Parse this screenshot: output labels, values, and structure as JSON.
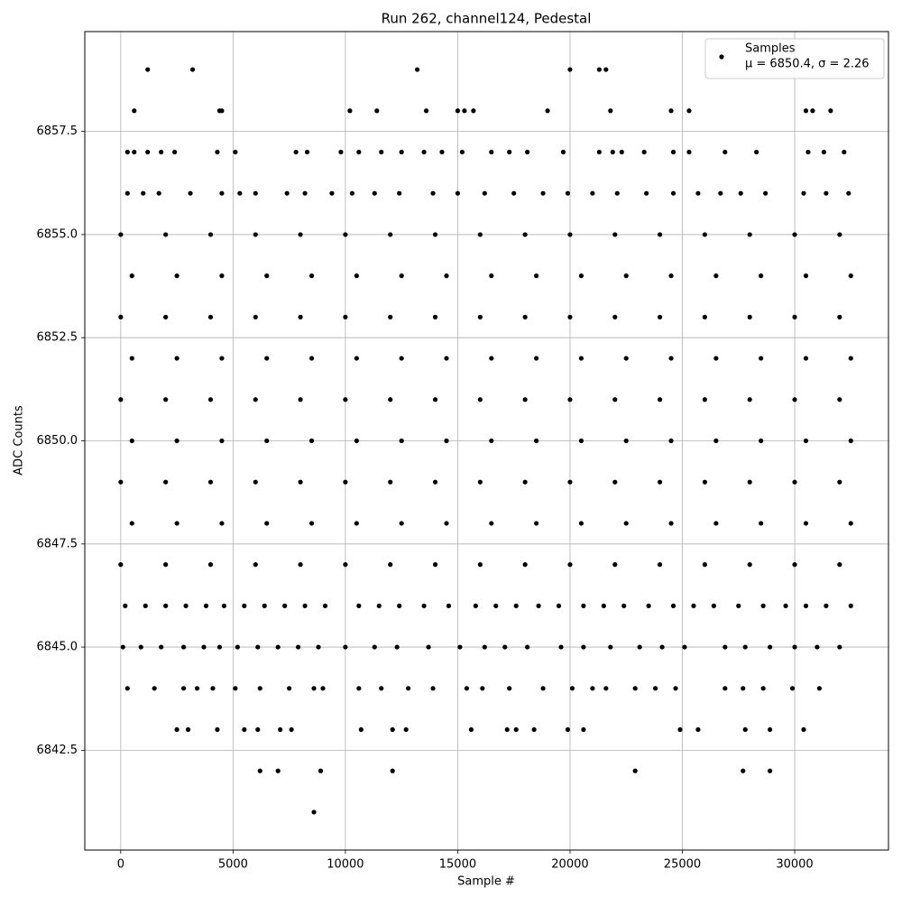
{
  "chart_data": {
    "type": "scatter",
    "title": "Run 262, channel124, Pedestal",
    "x_label": "Sample #",
    "y_label": "ADC Counts",
    "xlim": [
      -1600,
      34175
    ],
    "ylim": [
      6840.08,
      6859.92
    ],
    "xticks": [
      0,
      5000,
      10000,
      15000,
      20000,
      25000,
      30000
    ],
    "yticks": [
      6842.5,
      {
        "value": 6845,
        "label": "6845.0"
      },
      6847.5,
      {
        "value": 6850,
        "label": "6850.0"
      },
      6852.5,
      {
        "value": 6855,
        "label": "6855.0"
      },
      6857.5
    ],
    "grid": true,
    "legend": "upper right",
    "annotation": "μ = 6850.4, σ = 2.26",
    "series": [
      {
        "name": "Samples",
        "color": "#000000",
        "x": [
          1200,
          3200,
          13200,
          20000,
          21300,
          21600,
          600,
          4400,
          4500,
          10200,
          11400,
          13600,
          15000,
          15300,
          15700,
          19000,
          21800,
          24500,
          25300,
          30500,
          30800,
          31600,
          300,
          600,
          1200,
          1800,
          2400,
          4300,
          5100,
          7800,
          8300,
          9800,
          10600,
          11600,
          12500,
          13500,
          14300,
          15200,
          16500,
          17300,
          18100,
          19700,
          21300,
          21900,
          22300,
          23300,
          24600,
          25300,
          26900,
          28300,
          30600,
          31300,
          32200,
          300,
          1000,
          1700,
          3100,
          4500,
          5300,
          6000,
          7400,
          8200,
          9400,
          10300,
          11300,
          12400,
          13900,
          15000,
          16200,
          17500,
          18800,
          19900,
          21000,
          22100,
          23400,
          24600,
          25700,
          26700,
          27600,
          28700,
          30400,
          31400,
          32400,
          0,
          2000,
          4000,
          6000,
          8000,
          10000,
          12000,
          14000,
          16000,
          18000,
          20000,
          22000,
          24000,
          26000,
          28000,
          30000,
          32000,
          500,
          2500,
          4500,
          6500,
          8500,
          10500,
          12500,
          14500,
          16500,
          18500,
          20500,
          22500,
          24500,
          26500,
          28500,
          30500,
          32500,
          0,
          2000,
          4000,
          6000,
          8000,
          10000,
          12000,
          14000,
          16000,
          18000,
          20000,
          22000,
          24000,
          26000,
          28000,
          30000,
          32000,
          500,
          2500,
          4500,
          6500,
          8500,
          10500,
          12500,
          14500,
          16500,
          18500,
          20500,
          22500,
          24500,
          26500,
          28500,
          30500,
          32500,
          0,
          2000,
          4000,
          6000,
          8000,
          10000,
          12000,
          14000,
          16000,
          18000,
          20000,
          22000,
          24000,
          26000,
          28000,
          30000,
          32000,
          500,
          2500,
          4500,
          6500,
          8500,
          10500,
          12500,
          14500,
          16500,
          18500,
          20500,
          22500,
          24500,
          26500,
          28500,
          30500,
          32500,
          0,
          2000,
          4000,
          6000,
          8000,
          10000,
          12000,
          14000,
          16000,
          18000,
          20000,
          22000,
          24000,
          26000,
          28000,
          30000,
          32000,
          500,
          2500,
          4500,
          6500,
          8500,
          10500,
          12500,
          14500,
          16500,
          18500,
          20500,
          22500,
          24500,
          26500,
          28500,
          30500,
          32500,
          0,
          2000,
          4000,
          6000,
          8000,
          10000,
          12000,
          14000,
          16000,
          18000,
          20000,
          22000,
          24000,
          26000,
          28000,
          30000,
          32000,
          200,
          1100,
          2000,
          2900,
          3800,
          4600,
          5500,
          6400,
          7300,
          8200,
          9100,
          10600,
          11500,
          12400,
          13500,
          14600,
          15800,
          16700,
          17600,
          18600,
          19500,
          20600,
          21500,
          22400,
          23500,
          24600,
          25500,
          26400,
          27500,
          28600,
          29600,
          30500,
          31400,
          32500,
          100,
          900,
          1800,
          2800,
          3700,
          4400,
          5200,
          6100,
          7000,
          7900,
          8800,
          10000,
          11300,
          12300,
          13700,
          15100,
          16200,
          17100,
          18100,
          19600,
          20600,
          21800,
          23100,
          24100,
          25100,
          26900,
          27800,
          28900,
          30000,
          31000,
          32000,
          300,
          1500,
          2800,
          3400,
          4100,
          5100,
          6200,
          7500,
          8600,
          9000,
          10600,
          11600,
          12800,
          13900,
          15400,
          16100,
          17300,
          18800,
          20100,
          21000,
          21600,
          22900,
          23800,
          24700,
          26900,
          27700,
          28600,
          29900,
          31100,
          2500,
          3000,
          4300,
          5500,
          6100,
          7100,
          7600,
          10700,
          12100,
          12700,
          15600,
          17200,
          17600,
          18400,
          19900,
          20600,
          24900,
          25700,
          27800,
          28900,
          30400,
          6200,
          7000,
          8900,
          12100,
          22900,
          27700,
          28900,
          8600
        ],
        "values": [
          6859,
          6859,
          6859,
          6859,
          6859,
          6859,
          6858,
          6858,
          6858,
          6858,
          6858,
          6858,
          6858,
          6858,
          6858,
          6858,
          6858,
          6858,
          6858,
          6858,
          6858,
          6858,
          6857,
          6857,
          6857,
          6857,
          6857,
          6857,
          6857,
          6857,
          6857,
          6857,
          6857,
          6857,
          6857,
          6857,
          6857,
          6857,
          6857,
          6857,
          6857,
          6857,
          6857,
          6857,
          6857,
          6857,
          6857,
          6857,
          6857,
          6857,
          6857,
          6857,
          6857,
          6856,
          6856,
          6856,
          6856,
          6856,
          6856,
          6856,
          6856,
          6856,
          6856,
          6856,
          6856,
          6856,
          6856,
          6856,
          6856,
          6856,
          6856,
          6856,
          6856,
          6856,
          6856,
          6856,
          6856,
          6856,
          6856,
          6856,
          6856,
          6856,
          6856,
          6855,
          6855,
          6855,
          6855,
          6855,
          6855,
          6855,
          6855,
          6855,
          6855,
          6855,
          6855,
          6855,
          6855,
          6855,
          6855,
          6855,
          6854,
          6854,
          6854,
          6854,
          6854,
          6854,
          6854,
          6854,
          6854,
          6854,
          6854,
          6854,
          6854,
          6854,
          6854,
          6854,
          6854,
          6853,
          6853,
          6853,
          6853,
          6853,
          6853,
          6853,
          6853,
          6853,
          6853,
          6853,
          6853,
          6853,
          6853,
          6853,
          6853,
          6853,
          6852,
          6852,
          6852,
          6852,
          6852,
          6852,
          6852,
          6852,
          6852,
          6852,
          6852,
          6852,
          6852,
          6852,
          6852,
          6852,
          6852,
          6851,
          6851,
          6851,
          6851,
          6851,
          6851,
          6851,
          6851,
          6851,
          6851,
          6851,
          6851,
          6851,
          6851,
          6851,
          6851,
          6851,
          6850,
          6850,
          6850,
          6850,
          6850,
          6850,
          6850,
          6850,
          6850,
          6850,
          6850,
          6850,
          6850,
          6850,
          6850,
          6850,
          6850,
          6849,
          6849,
          6849,
          6849,
          6849,
          6849,
          6849,
          6849,
          6849,
          6849,
          6849,
          6849,
          6849,
          6849,
          6849,
          6849,
          6849,
          6848,
          6848,
          6848,
          6848,
          6848,
          6848,
          6848,
          6848,
          6848,
          6848,
          6848,
          6848,
          6848,
          6848,
          6848,
          6848,
          6848,
          6847,
          6847,
          6847,
          6847,
          6847,
          6847,
          6847,
          6847,
          6847,
          6847,
          6847,
          6847,
          6847,
          6847,
          6847,
          6847,
          6847,
          6846,
          6846,
          6846,
          6846,
          6846,
          6846,
          6846,
          6846,
          6846,
          6846,
          6846,
          6846,
          6846,
          6846,
          6846,
          6846,
          6846,
          6846,
          6846,
          6846,
          6846,
          6846,
          6846,
          6846,
          6846,
          6846,
          6846,
          6846,
          6846,
          6846,
          6846,
          6846,
          6846,
          6846,
          6845,
          6845,
          6845,
          6845,
          6845,
          6845,
          6845,
          6845,
          6845,
          6845,
          6845,
          6845,
          6845,
          6845,
          6845,
          6845,
          6845,
          6845,
          6845,
          6845,
          6845,
          6845,
          6845,
          6845,
          6845,
          6845,
          6845,
          6845,
          6845,
          6845,
          6845,
          6844,
          6844,
          6844,
          6844,
          6844,
          6844,
          6844,
          6844,
          6844,
          6844,
          6844,
          6844,
          6844,
          6844,
          6844,
          6844,
          6844,
          6844,
          6844,
          6844,
          6844,
          6844,
          6844,
          6844,
          6844,
          6844,
          6844,
          6844,
          6844,
          6843,
          6843,
          6843,
          6843,
          6843,
          6843,
          6843,
          6843,
          6843,
          6843,
          6843,
          6843,
          6843,
          6843,
          6843,
          6843,
          6843,
          6843,
          6843,
          6843,
          6843,
          6842,
          6842,
          6842,
          6842,
          6842,
          6842,
          6842,
          6841
        ]
      }
    ]
  }
}
